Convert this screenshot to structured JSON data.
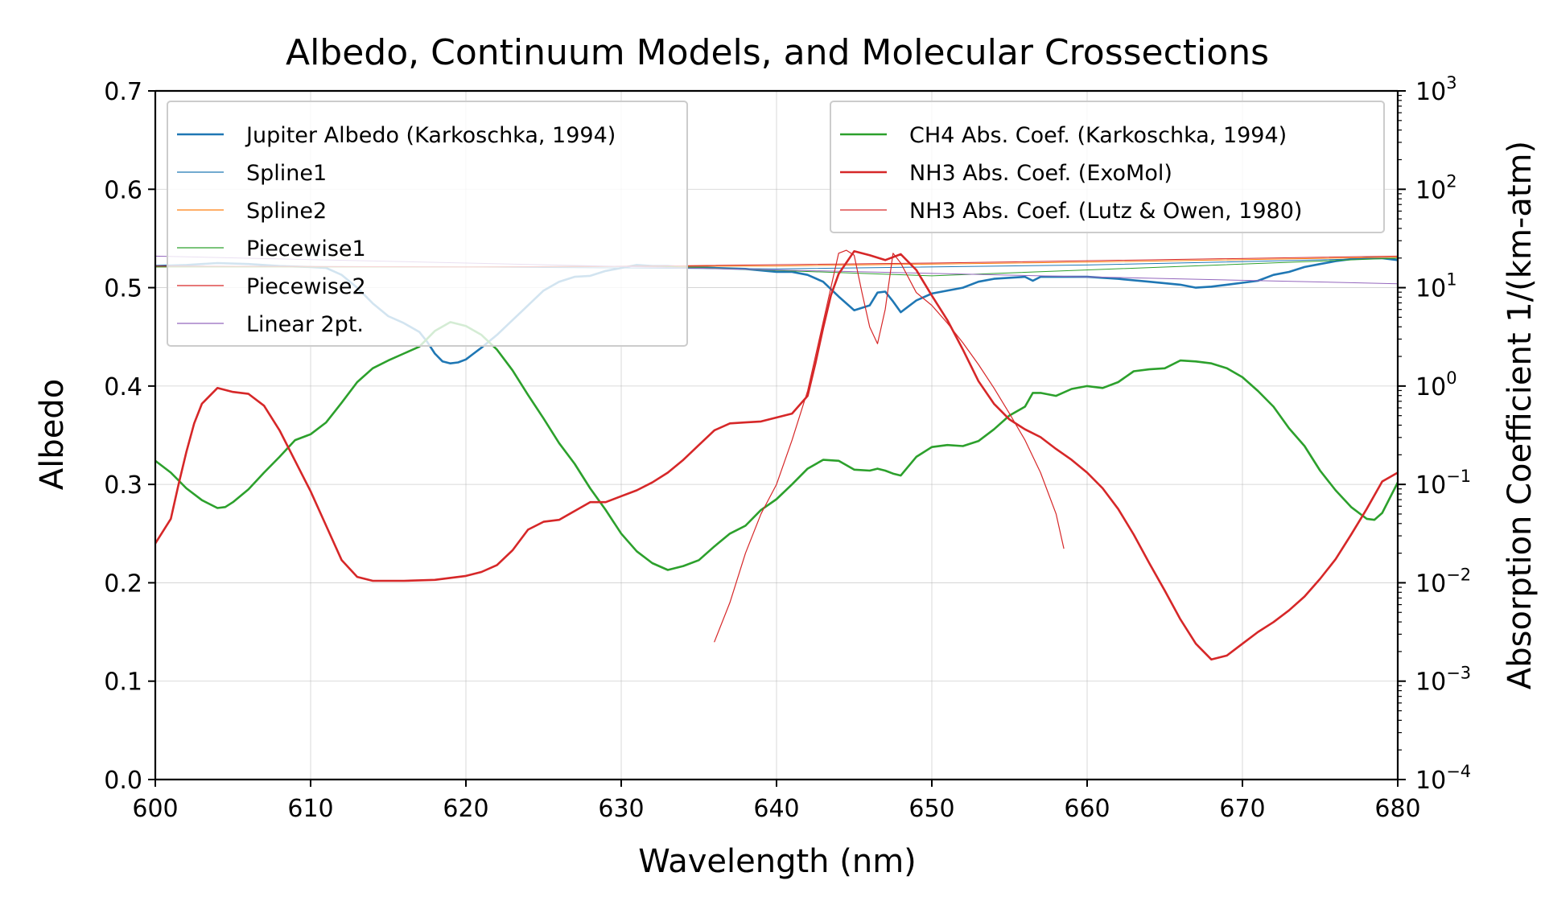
{
  "chart_data": {
    "type": "line",
    "title": "Albedo, Continuum Models, and Molecular Crossections",
    "xlabel": "Wavelength (nm)",
    "ylabel": "Albedo",
    "ylabel_right": "Absorption Coefficient 1/(km-atm)",
    "xlim": [
      600,
      680
    ],
    "ylim": [
      0,
      0.7
    ],
    "ylim_right_log10": [
      -4,
      3
    ],
    "right_scale": "log",
    "grid": true,
    "x_ticks": [
      "600",
      "610",
      "620",
      "630",
      "640",
      "650",
      "660",
      "670",
      "680"
    ],
    "y_ticks": [
      "0.0",
      "0.1",
      "0.2",
      "0.3",
      "0.4",
      "0.5",
      "0.6",
      "0.7"
    ],
    "y_right_ticks": [
      {
        "base": "10",
        "exp": "−4"
      },
      {
        "base": "10",
        "exp": "−3"
      },
      {
        "base": "10",
        "exp": "−2"
      },
      {
        "base": "10",
        "exp": "−1"
      },
      {
        "base": "10",
        "exp": "0"
      },
      {
        "base": "10",
        "exp": "1"
      },
      {
        "base": "10",
        "exp": "2"
      },
      {
        "base": "10",
        "exp": "3"
      }
    ],
    "legend_left": {
      "placement": "upper-left",
      "entries": [
        {
          "label": "Jupiter Albedo (Karkoschka, 1994)",
          "color": "#1f77b4",
          "width": 2.6
        },
        {
          "label": "Spline1",
          "color": "#1f77b4",
          "width": 1.2
        },
        {
          "label": "Spline2",
          "color": "#ff7f0e",
          "width": 1.2
        },
        {
          "label": "Piecewise1",
          "color": "#2ca02c",
          "width": 1.2
        },
        {
          "label": "Piecewise2",
          "color": "#d62728",
          "width": 1.2
        },
        {
          "label": "Linear 2pt.",
          "color": "#9467bd",
          "width": 1.2
        }
      ]
    },
    "legend_right": {
      "placement": "upper-right",
      "entries": [
        {
          "label": "CH4 Abs. Coef. (Karkoschka, 1994)",
          "color": "#2ca02c",
          "width": 2.6
        },
        {
          "label": "NH3 Abs. Coef. (ExoMol)",
          "color": "#d62728",
          "width": 2.6
        },
        {
          "label": "NH3 Abs. Coef. (Lutz & Owen, 1980)",
          "color": "#d62728",
          "width": 1.2
        }
      ]
    },
    "series": [
      {
        "name": "Jupiter Albedo (Karkoschka, 1994)",
        "axis": "left",
        "color": "#1f77b4",
        "width": 2.6,
        "x": [
          600,
          602,
          604,
          606,
          608,
          610,
          611,
          612,
          613,
          614,
          615,
          616,
          617,
          617.5,
          618,
          618.5,
          619,
          619.5,
          620,
          620.5,
          621,
          622,
          623,
          624,
          625,
          626,
          627,
          628,
          629,
          630,
          631,
          632,
          633,
          634,
          636,
          638,
          640,
          641,
          642,
          643,
          644,
          645,
          646,
          646.5,
          647,
          647.5,
          648,
          649,
          650,
          652,
          653,
          654,
          655,
          656,
          656.5,
          657,
          658,
          660,
          662,
          664,
          666,
          667,
          668,
          669,
          670,
          671,
          672,
          673,
          674,
          675,
          676,
          677,
          678,
          679,
          680
        ],
        "y": [
          0.522,
          0.523,
          0.525,
          0.524,
          0.522,
          0.521,
          0.52,
          0.513,
          0.5,
          0.484,
          0.471,
          0.464,
          0.455,
          0.445,
          0.433,
          0.425,
          0.423,
          0.424,
          0.427,
          0.433,
          0.439,
          0.452,
          0.467,
          0.482,
          0.497,
          0.506,
          0.511,
          0.512,
          0.517,
          0.52,
          0.523,
          0.522,
          0.522,
          0.521,
          0.52,
          0.519,
          0.516,
          0.516,
          0.513,
          0.506,
          0.491,
          0.477,
          0.482,
          0.495,
          0.496,
          0.486,
          0.475,
          0.487,
          0.494,
          0.5,
          0.506,
          0.509,
          0.51,
          0.511,
          0.507,
          0.511,
          0.511,
          0.511,
          0.509,
          0.506,
          0.503,
          0.5,
          0.501,
          0.503,
          0.505,
          0.507,
          0.513,
          0.516,
          0.521,
          0.524,
          0.527,
          0.529,
          0.53,
          0.53,
          0.528
        ]
      },
      {
        "name": "Spline1",
        "axis": "left",
        "color": "#1f77b4",
        "width": 1.0,
        "x": [
          600,
          620,
          640,
          660,
          680
        ],
        "y": [
          0.522,
          0.521,
          0.519,
          0.523,
          0.53
        ]
      },
      {
        "name": "Spline2",
        "axis": "left",
        "color": "#ff7f0e",
        "width": 1.0,
        "x": [
          600,
          620,
          640,
          660,
          680
        ],
        "y": [
          0.521,
          0.521,
          0.522,
          0.526,
          0.531
        ]
      },
      {
        "name": "Piecewise1",
        "axis": "left",
        "color": "#2ca02c",
        "width": 1.0,
        "x": [
          600,
          620,
          632,
          650,
          680
        ],
        "y": [
          0.521,
          0.521,
          0.522,
          0.512,
          0.53
        ]
      },
      {
        "name": "Piecewise2",
        "axis": "left",
        "color": "#d62728",
        "width": 1.0,
        "x": [
          600,
          620,
          632,
          650,
          680
        ],
        "y": [
          0.522,
          0.521,
          0.522,
          0.525,
          0.532
        ]
      },
      {
        "name": "Linear 2pt.",
        "axis": "left",
        "color": "#9467bd",
        "width": 1.0,
        "x": [
          600,
          680
        ],
        "y": [
          0.532,
          0.504
        ]
      },
      {
        "name": "CH4 Abs. Coef. (Karkoschka, 1994)",
        "axis": "right",
        "color": "#2ca02c",
        "width": 2.6,
        "x": [
          600,
          601,
          602,
          603,
          604,
          604.5,
          605,
          606,
          607,
          608,
          609,
          610,
          611,
          612,
          613,
          614,
          615,
          616,
          617,
          618,
          619,
          620,
          621,
          622,
          623,
          624,
          625,
          626,
          627,
          628,
          629,
          630,
          631,
          632,
          633,
          634,
          635,
          636,
          637,
          638,
          639,
          640,
          641,
          642,
          643,
          644,
          645,
          646,
          646.5,
          647,
          647.5,
          648,
          649,
          650,
          651,
          652,
          653,
          654,
          655,
          656,
          656.5,
          657,
          658,
          659,
          660,
          661,
          662,
          663,
          664,
          665,
          666,
          667,
          668,
          669,
          670,
          671,
          672,
          673,
          674,
          675,
          676,
          677,
          678,
          678.5,
          679,
          680
        ],
        "y": [
          -0.76,
          -0.88,
          -1.04,
          -1.16,
          -1.24,
          -1.23,
          -1.18,
          -1.05,
          -0.88,
          -0.72,
          -0.55,
          -0.49,
          -0.37,
          -0.17,
          0.04,
          0.18,
          0.26,
          0.33,
          0.4,
          0.56,
          0.65,
          0.61,
          0.52,
          0.37,
          0.16,
          -0.09,
          -0.33,
          -0.58,
          -0.79,
          -1.04,
          -1.26,
          -1.5,
          -1.68,
          -1.8,
          -1.87,
          -1.83,
          -1.77,
          -1.63,
          -1.5,
          -1.42,
          -1.26,
          -1.15,
          -1.0,
          -0.84,
          -0.75,
          -0.76,
          -0.85,
          -0.86,
          -0.84,
          -0.86,
          -0.89,
          -0.91,
          -0.72,
          -0.62,
          -0.6,
          -0.61,
          -0.56,
          -0.44,
          -0.3,
          -0.21,
          -0.07,
          -0.07,
          -0.1,
          -0.03,
          0.0,
          -0.02,
          0.04,
          0.15,
          0.17,
          0.18,
          0.26,
          0.25,
          0.23,
          0.18,
          0.09,
          -0.05,
          -0.21,
          -0.43,
          -0.61,
          -0.86,
          -1.06,
          -1.23,
          -1.35,
          -1.36,
          -1.29,
          -0.98
        ]
      },
      {
        "name": "NH3 Abs. Coef. (ExoMol)",
        "axis": "right",
        "color": "#d62728",
        "width": 2.6,
        "x": [
          600,
          601,
          601.5,
          602,
          602.5,
          603,
          604,
          605,
          606,
          607,
          608,
          609,
          610,
          611,
          612,
          613,
          614,
          616,
          618,
          620,
          621,
          622,
          623,
          624,
          625,
          626,
          627,
          628,
          629,
          630,
          631,
          632,
          633,
          634,
          635,
          636,
          637,
          638,
          639,
          640,
          641,
          642,
          642.5,
          643,
          643.5,
          644,
          645,
          646,
          647,
          648,
          649,
          650,
          651,
          652,
          653,
          654,
          655,
          656,
          657,
          658,
          659,
          660,
          661,
          662,
          663,
          664,
          665,
          666,
          667,
          668,
          669,
          670,
          671,
          672,
          673,
          674,
          675,
          676,
          677,
          678,
          679,
          680
        ],
        "y": [
          -1.6,
          -1.35,
          -1.0,
          -0.67,
          -0.38,
          -0.18,
          -0.02,
          -0.06,
          -0.08,
          -0.2,
          -0.45,
          -0.76,
          -1.07,
          -1.42,
          -1.77,
          -1.94,
          -1.98,
          -1.98,
          -1.97,
          -1.93,
          -1.89,
          -1.82,
          -1.67,
          -1.46,
          -1.38,
          -1.36,
          -1.27,
          -1.18,
          -1.18,
          -1.12,
          -1.06,
          -0.98,
          -0.88,
          -0.75,
          -0.6,
          -0.45,
          -0.38,
          -0.37,
          -0.36,
          -0.32,
          -0.28,
          -0.1,
          0.23,
          0.59,
          0.92,
          1.14,
          1.37,
          1.33,
          1.28,
          1.34,
          1.18,
          0.92,
          0.67,
          0.37,
          0.05,
          -0.18,
          -0.34,
          -0.44,
          -0.52,
          -0.64,
          -0.75,
          -0.88,
          -1.04,
          -1.25,
          -1.51,
          -1.8,
          -2.08,
          -2.37,
          -2.62,
          -2.78,
          -2.74,
          -2.62,
          -2.5,
          -2.4,
          -2.28,
          -2.14,
          -1.96,
          -1.76,
          -1.51,
          -1.25,
          -0.97,
          -0.88
        ]
      },
      {
        "name": "NH3 Abs. Coef. (Lutz & Owen, 1980)",
        "axis": "right",
        "color": "#d62728",
        "width": 1.2,
        "x": [
          636,
          637,
          638,
          639,
          640,
          641,
          642,
          643,
          644,
          644.5,
          645,
          645.5,
          646,
          646.5,
          647,
          647.5,
          648,
          649,
          650,
          651,
          652,
          653,
          654,
          655,
          656,
          657,
          658,
          658.5
        ],
        "y": [
          -2.6,
          -2.2,
          -1.7,
          -1.3,
          -1.0,
          -0.55,
          -0.05,
          0.65,
          1.35,
          1.38,
          1.33,
          0.95,
          0.6,
          0.43,
          0.78,
          1.35,
          1.25,
          0.95,
          0.82,
          0.64,
          0.44,
          0.22,
          -0.02,
          -0.28,
          -0.55,
          -0.88,
          -1.3,
          -1.65
        ]
      }
    ]
  }
}
